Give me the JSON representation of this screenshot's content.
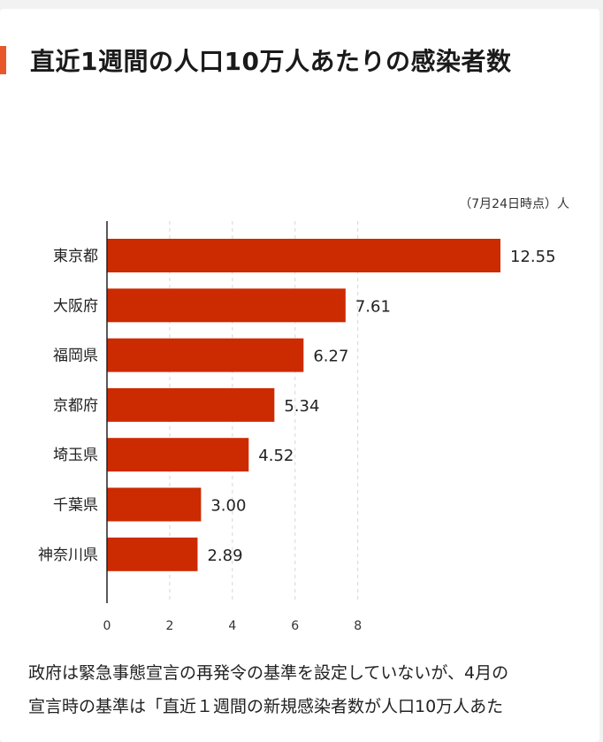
{
  "title": "直近1週間の人口10万人あたりの感染者数",
  "note": "（7月24日時点）人",
  "chart_data": {
    "type": "bar",
    "orientation": "horizontal",
    "categories": [
      "東京都",
      "大阪府",
      "福岡県",
      "京都府",
      "埼玉県",
      "千葉県",
      "神奈川県"
    ],
    "values": [
      12.55,
      7.61,
      6.27,
      5.34,
      4.52,
      3.0,
      2.89
    ],
    "value_labels": [
      "12.55",
      "7.61",
      "6.27",
      "5.34",
      "4.52",
      "3.00",
      "2.89"
    ],
    "x_ticks": [
      0,
      2,
      4,
      6,
      8
    ],
    "xlim": [
      0,
      12.55
    ],
    "bar_color": "#cc2a00",
    "grid": "dashed vertical lines"
  },
  "body_text": [
    "政府は緊急事態宣言の再発令の基準を設定していないが、4月の",
    "宣言時の基準は「直近１週間の新規感染者数が人口10万人あた"
  ]
}
